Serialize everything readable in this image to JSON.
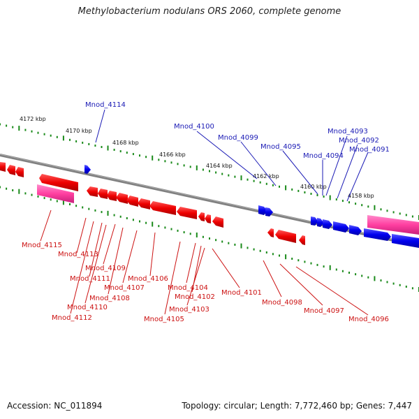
{
  "title": "Methylobacterium nodulans ORS 2060, complete genome",
  "footer": {
    "accession": "Accession: NC_011894",
    "stats": "Topology: circular; Length: 7,772,460 bp; Genes: 7,447"
  },
  "colors": {
    "backbone": "#808080",
    "forward_gene": "#0000ff",
    "reverse_gene": "#ff0000",
    "rna_gene": "#ff4fa8",
    "tick": "#1a8a1a",
    "forward_label": "#1a1ab5",
    "reverse_label": "#cc1111"
  },
  "scale_labels": [
    "4172 kbp",
    "4170 kbp",
    "4168 kbp",
    "4166 kbp",
    "4164 kbp",
    "4162 kbp",
    "4160 kbp",
    "4158 kbp"
  ],
  "forward_labels": [
    "Mnod_4114",
    "Mnod_4100",
    "Mnod_4099",
    "Mnod_4095",
    "Mnod_4094",
    "Mnod_4093",
    "Mnod_4092",
    "Mnod_4091"
  ],
  "reverse_labels": [
    "Mnod_4115",
    "Mnod_4113",
    "Mnod_4109",
    "Mnod_4111",
    "Mnod_4107",
    "Mnod_4106",
    "Mnod_4108",
    "Mnod_4110",
    "Mnod_4112",
    "Mnod_4104",
    "Mnod_4102",
    "Mnod_4103",
    "Mnod_4105",
    "Mnod_4101",
    "Mnod_4098",
    "Mnod_4097",
    "Mnod_4096"
  ]
}
